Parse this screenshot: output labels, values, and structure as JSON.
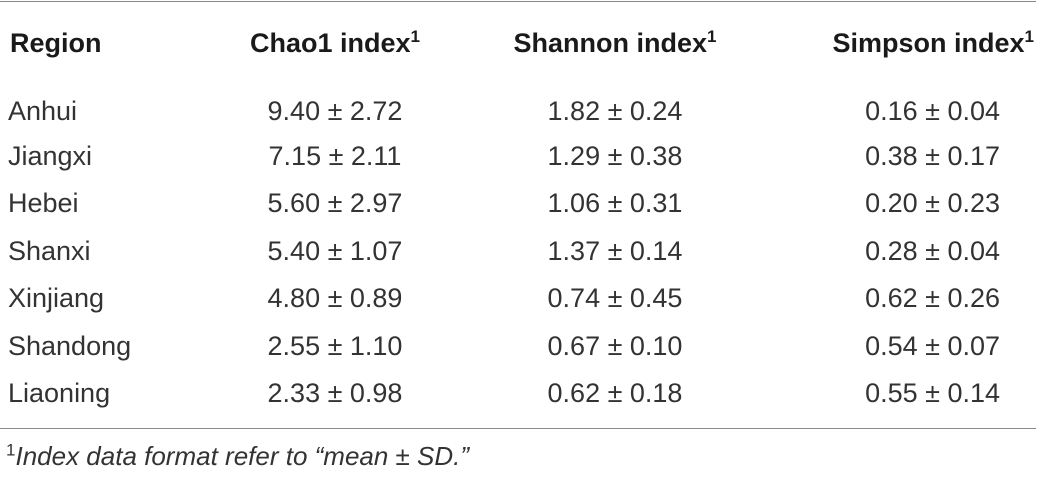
{
  "headers": {
    "region": "Region",
    "chao1": "Chao1 index",
    "shannon": "Shannon index",
    "simpson": "Simpson index",
    "sup": "1"
  },
  "rows": [
    {
      "region": "Anhui",
      "chao1": "9.40 ± 2.72",
      "shannon": "1.82 ± 0.24",
      "simpson": "0.16 ± 0.04"
    },
    {
      "region": "Jiangxi",
      "chao1": "7.15 ± 2.11",
      "shannon": "1.29 ± 0.38",
      "simpson": "0.38 ± 0.17"
    },
    {
      "region": "Hebei",
      "chao1": "5.60 ± 2.97",
      "shannon": "1.06 ± 0.31",
      "simpson": "0.20 ± 0.23"
    },
    {
      "region": "Shanxi",
      "chao1": "5.40 ± 1.07",
      "shannon": "1.37 ± 0.14",
      "simpson": "0.28 ± 0.04"
    },
    {
      "region": "Xinjiang",
      "chao1": "4.80 ± 0.89",
      "shannon": "0.74 ± 0.45",
      "simpson": "0.62 ± 0.26"
    },
    {
      "region": "Shandong",
      "chao1": "2.55 ± 1.10",
      "shannon": "0.67 ± 0.10",
      "simpson": "0.54 ± 0.07"
    },
    {
      "region": "Liaoning",
      "chao1": "2.33 ± 0.98",
      "shannon": "0.62 ± 0.18",
      "simpson": "0.55 ± 0.14"
    }
  ],
  "footnote": {
    "marker": "1",
    "text": "Index data format refer to “mean ± SD.”"
  }
}
